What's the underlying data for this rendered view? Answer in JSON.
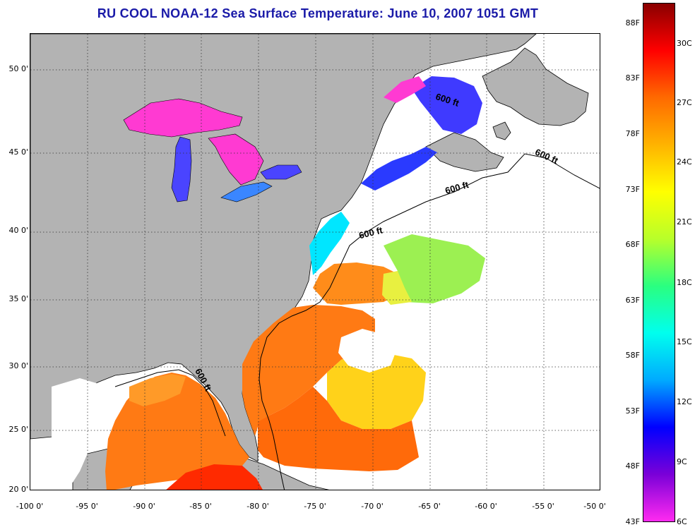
{
  "title": "RU COOL  NOAA-12  Sea Surface Temperature:  June 10, 2007 1051 GMT",
  "map": {
    "lat_labels": [
      "50 0'",
      "45 0'",
      "40 0'",
      "35 0'",
      "30 0'",
      "25 0'",
      "20 0'"
    ],
    "lon_labels": [
      "-100 0'",
      "-95 0'",
      "-90 0'",
      "-85 0'",
      "-80 0'",
      "-75 0'",
      "-70 0'",
      "-65 0'",
      "-60 0'",
      "-55 0'",
      "-50 0'"
    ],
    "isobath_label": "600 ft",
    "land_color": "#b3b3b3",
    "no_data_color": "#ffffff"
  },
  "colorbar": {
    "fahrenheit_labels": [
      "88F",
      "83F",
      "78F",
      "73F",
      "68F",
      "63F",
      "58F",
      "53F",
      "48F",
      "43F"
    ],
    "celsius_labels": [
      "30C",
      "27C",
      "24C",
      "21C",
      "18C",
      "15C",
      "12C",
      "9C",
      "6C"
    ],
    "colors": [
      "#ff2af0",
      "#7a00d8",
      "#0000ff",
      "#00aaff",
      "#00ffee",
      "#2aff80",
      "#b8ff2a",
      "#ffff00",
      "#ffb300",
      "#ff6a00",
      "#ff0000",
      "#8a0000"
    ]
  }
}
